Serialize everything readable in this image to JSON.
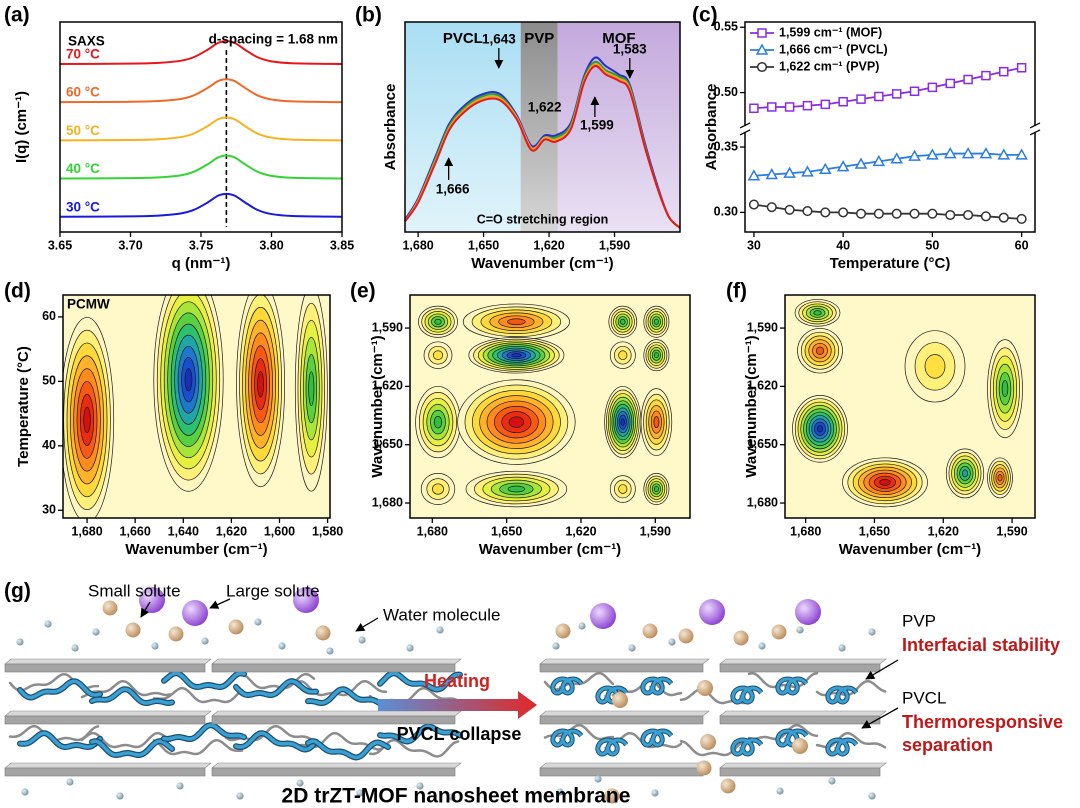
{
  "chart_data": [
    {
      "type": "line",
      "panel_label": "(a)",
      "x_label": "q (nm⁻¹)",
      "y_label": "I(q) (cm⁻¹)",
      "annotations": [
        "SAXS",
        "d-spacing = 1.68 nm"
      ],
      "legend": "left",
      "peak_line": 3.768,
      "x": [
        3.65,
        3.7,
        3.72,
        3.735,
        3.745,
        3.755,
        3.762,
        3.768,
        3.774,
        3.781,
        3.79,
        3.8,
        3.815,
        3.85
      ],
      "series": [
        {
          "name": "30 °C",
          "color": "#1a1ad8",
          "values": [
            0.4,
            0.41,
            0.43,
            0.48,
            0.58,
            0.78,
            0.95,
            1.0,
            0.95,
            0.78,
            0.58,
            0.47,
            0.42,
            0.4
          ]
        },
        {
          "name": "40 °C",
          "color": "#33d433",
          "values": [
            1.4,
            1.41,
            1.43,
            1.48,
            1.58,
            1.78,
            1.95,
            2.0,
            1.95,
            1.78,
            1.58,
            1.47,
            1.42,
            1.4
          ]
        },
        {
          "name": "50 °C",
          "color": "#f5b21c",
          "values": [
            2.4,
            2.41,
            2.43,
            2.48,
            2.58,
            2.78,
            2.95,
            3.0,
            2.95,
            2.78,
            2.58,
            2.47,
            2.42,
            2.4
          ]
        },
        {
          "name": "60 °C",
          "color": "#f0682a",
          "values": [
            3.4,
            3.41,
            3.43,
            3.48,
            3.58,
            3.78,
            3.95,
            4.0,
            3.95,
            3.78,
            3.58,
            3.47,
            3.42,
            3.4
          ]
        },
        {
          "name": "70 °C",
          "color": "#e8161b",
          "values": [
            4.4,
            4.41,
            4.43,
            4.48,
            4.58,
            4.78,
            4.95,
            5.0,
            4.95,
            4.78,
            4.58,
            4.47,
            4.42,
            4.4
          ]
        }
      ],
      "xlim": [
        3.65,
        3.85
      ],
      "xticks": [
        3.65,
        {
          "value": 3.7,
          "label": "3.70"
        },
        3.75,
        {
          "value": 3.8,
          "label": "3.80"
        },
        3.85
      ],
      "ylim": [
        0,
        5.5
      ]
    },
    {
      "type": "line",
      "panel_label": "(b)",
      "x_label": "Wavenumber (cm⁻¹)",
      "y_label": "Absorbance",
      "note": "C=O stretching region",
      "regions": [
        {
          "name": "PVCL",
          "from": 1686,
          "to": 1633,
          "color": "#a9def3"
        },
        {
          "name": "PVP",
          "from": 1633,
          "to": 1616,
          "color": "#8c8c8c"
        },
        {
          "name": "MOF",
          "from": 1616,
          "to": 1560,
          "color": "#c3a9dc"
        }
      ],
      "peaks": [
        {
          "value": 1643,
          "label": "1,643"
        },
        {
          "value": 1622,
          "label": "1,622"
        },
        {
          "value": 1599,
          "label": "1,599"
        },
        {
          "value": 1583,
          "label": "1,583"
        },
        {
          "value": 1666,
          "label": "1,666"
        }
      ],
      "x": [
        1686,
        1680,
        1672,
        1666,
        1660,
        1652,
        1643,
        1635,
        1628,
        1622,
        1617,
        1610,
        1604,
        1599,
        1594,
        1588,
        1583,
        1576,
        1570,
        1565,
        1560
      ],
      "series": [
        {
          "color": "#2b2bd0",
          "values": [
            0.06,
            0.16,
            0.36,
            0.51,
            0.59,
            0.65,
            0.66,
            0.56,
            0.41,
            0.46,
            0.46,
            0.52,
            0.74,
            0.83,
            0.79,
            0.75,
            0.7,
            0.42,
            0.21,
            0.07,
            0.02
          ]
        },
        {
          "color": "#2ca02c",
          "values": [
            0.05,
            0.15,
            0.35,
            0.5,
            0.58,
            0.64,
            0.65,
            0.55,
            0.4,
            0.45,
            0.45,
            0.51,
            0.73,
            0.81,
            0.77,
            0.74,
            0.69,
            0.41,
            0.2,
            0.07,
            0.02
          ]
        },
        {
          "color": "#f0a020",
          "values": [
            0.05,
            0.15,
            0.34,
            0.49,
            0.57,
            0.63,
            0.64,
            0.55,
            0.4,
            0.45,
            0.44,
            0.5,
            0.72,
            0.8,
            0.76,
            0.73,
            0.68,
            0.4,
            0.2,
            0.07,
            0.02
          ]
        },
        {
          "color": "#e41a1c",
          "values": [
            0.05,
            0.14,
            0.33,
            0.48,
            0.56,
            0.62,
            0.63,
            0.54,
            0.39,
            0.44,
            0.43,
            0.49,
            0.71,
            0.79,
            0.75,
            0.72,
            0.67,
            0.4,
            0.2,
            0.07,
            0.02
          ]
        }
      ],
      "xlim": [
        1686,
        1560
      ],
      "xticks": [
        {
          "value": 1680,
          "label": "1,680"
        },
        {
          "value": 1650,
          "label": "1,650"
        },
        {
          "value": 1620,
          "label": "1,620"
        },
        {
          "value": 1590,
          "label": "1,590"
        }
      ],
      "ylim": [
        0,
        1
      ]
    },
    {
      "type": "line",
      "panel_label": "(c)",
      "x_label": "Temperature (°C)",
      "y_label": "Absorbance",
      "legend": "upper left",
      "x": [
        30,
        32,
        34,
        36,
        38,
        40,
        42,
        44,
        46,
        48,
        50,
        52,
        54,
        56,
        58,
        60
      ],
      "series": [
        {
          "name": "1,599 cm⁻¹ (MOF)",
          "color": "#8a2be2",
          "marker": "square",
          "values": [
            0.488,
            0.489,
            0.489,
            0.49,
            0.491,
            0.493,
            0.495,
            0.497,
            0.499,
            0.501,
            0.504,
            0.507,
            0.51,
            0.513,
            0.516,
            0.519
          ]
        },
        {
          "name": "1,666 cm⁻¹ (PVCL)",
          "color": "#2a7de1",
          "marker": "triangle",
          "values": [
            0.328,
            0.329,
            0.33,
            0.331,
            0.333,
            0.335,
            0.337,
            0.339,
            0.341,
            0.343,
            0.344,
            0.345,
            0.345,
            0.345,
            0.344,
            0.344
          ]
        },
        {
          "name": "1,622 cm⁻¹ (PVP)",
          "color": "#333333",
          "marker": "circle",
          "values": [
            0.306,
            0.304,
            0.302,
            0.301,
            0.3,
            0.3,
            0.299,
            0.299,
            0.299,
            0.299,
            0.299,
            0.298,
            0.298,
            0.297,
            0.296,
            0.295
          ]
        }
      ],
      "xlim": [
        29,
        61.5
      ],
      "xticks": [
        30,
        40,
        50,
        60
      ],
      "ylim": [
        0.285,
        0.554
      ],
      "y_break": [
        0.36,
        0.476
      ],
      "yticks": [
        {
          "value": 0.3,
          "label": "0.30"
        },
        0.35,
        {
          "value": 0.5,
          "label": "0.50"
        },
        0.55
      ]
    },
    {
      "type": "contour",
      "panel_label": "(d)",
      "annotation": "PCMW",
      "x_label": "Wavenumber (cm⁻¹)",
      "y_label": "Temperature (°C)",
      "xlim": [
        1690,
        1579
      ],
      "xticks": [
        {
          "value": 1680,
          "label": "1,680"
        },
        {
          "value": 1660,
          "label": "1,660"
        },
        {
          "value": 1640,
          "label": "1,640"
        },
        {
          "value": 1620,
          "label": "1,620"
        },
        {
          "value": 1600,
          "label": "1,600"
        },
        {
          "value": 1580,
          "label": "1,580"
        }
      ],
      "ylim": [
        28.8,
        63.4
      ],
      "yticks": [
        30,
        40,
        50,
        60
      ]
    },
    {
      "type": "contour",
      "panel_label": "(e)",
      "x_label": "Wavenumber (cm⁻¹)",
      "y_label": "Wavenumber (cm⁻¹)",
      "xlim": [
        1689,
        1576
      ],
      "xticks": [
        {
          "value": 1680,
          "label": "1,680"
        },
        {
          "value": 1650,
          "label": "1,650"
        },
        {
          "value": 1620,
          "label": "1,620"
        },
        {
          "value": 1590,
          "label": "1,590"
        }
      ],
      "ylim": [
        1687.7,
        1573
      ],
      "yticks": [
        {
          "value": 1590,
          "label": "1,590"
        },
        {
          "value": 1620,
          "label": "1,620"
        },
        {
          "value": 1650,
          "label": "1,650"
        },
        {
          "value": 1680,
          "label": "1,680"
        }
      ]
    },
    {
      "type": "contour",
      "panel_label": "(f)",
      "x_label": "Wavenumber (cm⁻¹)",
      "y_label": "Wavenumber (cm⁻¹)",
      "xlim": [
        1689,
        1580
      ],
      "xticks": [
        {
          "value": 1680,
          "label": "1,680"
        },
        {
          "value": 1650,
          "label": "1,650"
        },
        {
          "value": 1620,
          "label": "1,620"
        },
        {
          "value": 1590,
          "label": "1,590"
        }
      ],
      "ylim": [
        1687.7,
        1573
      ],
      "yticks": [
        {
          "value": 1590,
          "label": "1,590"
        },
        {
          "value": 1620,
          "label": "1,620"
        },
        {
          "value": 1650,
          "label": "1,650"
        },
        {
          "value": 1680,
          "label": "1,680"
        }
      ]
    }
  ],
  "schematic": {
    "panel_label": "(g)",
    "small_solute": "Small solute",
    "large_solute": "Large solute",
    "water": "Water molecule",
    "heating": "Heating",
    "collapse": "PVCL collapse",
    "pvp": "PVP",
    "pvp_role": "Interfacial stability",
    "pvcl": "PVCL",
    "pvcl_role": [
      "Thermoresponsive",
      "separation"
    ],
    "caption": "2D trZT-MOF nanosheet membrane"
  }
}
